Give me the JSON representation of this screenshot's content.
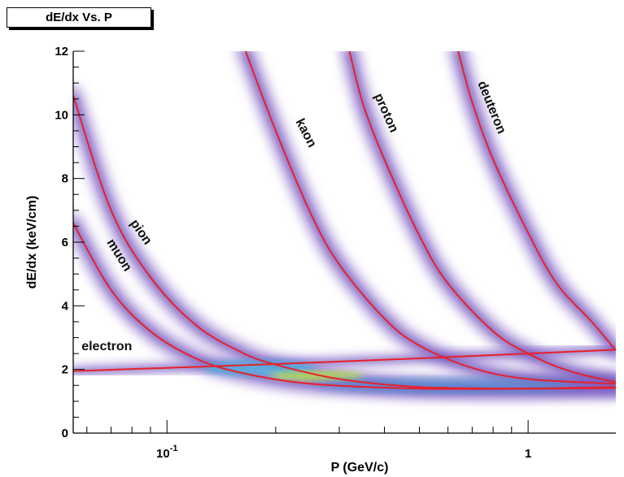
{
  "chart_data": {
    "type": "scatter",
    "title": "dE/dx Vs. P",
    "xlabel": "P (GeV/c)",
    "ylabel": "dE/dx (keV/cm)",
    "x_scale": "log",
    "xlim": [
      0.055,
      1.75
    ],
    "ylim": [
      0,
      12
    ],
    "x_ticks": [
      {
        "value": 0.1,
        "label": "10",
        "exponent": "-1"
      },
      {
        "value": 1,
        "label": "1",
        "exponent": ""
      }
    ],
    "y_ticks": [
      {
        "value": 0,
        "label": "0"
      },
      {
        "value": 2,
        "label": "2"
      },
      {
        "value": 4,
        "label": "4"
      },
      {
        "value": 6,
        "label": "6"
      },
      {
        "value": 8,
        "label": "8"
      },
      {
        "value": 10,
        "label": "10"
      },
      {
        "value": 12,
        "label": "12"
      }
    ],
    "series": [
      {
        "name": "electron",
        "color": "#e8202a",
        "points": [
          [
            0.055,
            1.95
          ],
          [
            0.1,
            2.05
          ],
          [
            0.2,
            2.17
          ],
          [
            0.5,
            2.35
          ],
          [
            1.0,
            2.5
          ],
          [
            1.75,
            2.62
          ]
        ]
      },
      {
        "name": "muon",
        "color": "#e8202a",
        "points": [
          [
            0.055,
            6.6
          ],
          [
            0.07,
            4.5
          ],
          [
            0.09,
            3.2
          ],
          [
            0.12,
            2.35
          ],
          [
            0.16,
            1.9
          ],
          [
            0.25,
            1.55
          ],
          [
            0.5,
            1.4
          ],
          [
            1.0,
            1.4
          ],
          [
            1.75,
            1.45
          ]
        ]
      },
      {
        "name": "pion",
        "color": "#e8202a",
        "points": [
          [
            0.055,
            10.6
          ],
          [
            0.07,
            7.0
          ],
          [
            0.09,
            4.9
          ],
          [
            0.12,
            3.4
          ],
          [
            0.16,
            2.55
          ],
          [
            0.2,
            2.15
          ],
          [
            0.3,
            1.7
          ],
          [
            0.5,
            1.45
          ],
          [
            1.0,
            1.4
          ],
          [
            1.75,
            1.42
          ]
        ]
      },
      {
        "name": "kaon",
        "color": "#e8202a",
        "points": [
          [
            0.165,
            12.0
          ],
          [
            0.2,
            9.5
          ],
          [
            0.25,
            6.9
          ],
          [
            0.3,
            5.3
          ],
          [
            0.4,
            3.6
          ],
          [
            0.5,
            2.75
          ],
          [
            0.7,
            2.05
          ],
          [
            1.0,
            1.7
          ],
          [
            1.75,
            1.55
          ]
        ]
      },
      {
        "name": "proton",
        "color": "#e8202a",
        "points": [
          [
            0.32,
            12.0
          ],
          [
            0.35,
            10.3
          ],
          [
            0.4,
            8.6
          ],
          [
            0.5,
            6.2
          ],
          [
            0.6,
            4.7
          ],
          [
            0.8,
            3.2
          ],
          [
            1.0,
            2.5
          ],
          [
            1.3,
            1.95
          ],
          [
            1.75,
            1.6
          ]
        ]
      },
      {
        "name": "deuteron",
        "color": "#e8202a",
        "points": [
          [
            0.64,
            12.0
          ],
          [
            0.7,
            10.4
          ],
          [
            0.8,
            8.6
          ],
          [
            1.0,
            6.3
          ],
          [
            1.2,
            4.7
          ],
          [
            1.5,
            3.5
          ],
          [
            1.75,
            2.6
          ]
        ]
      }
    ],
    "curve_labels": [
      {
        "text": "electron",
        "x": 0.058,
        "y": 2.6,
        "angle": 0
      },
      {
        "text": "muon",
        "x": 0.068,
        "y": 6.0,
        "angle": 58
      },
      {
        "text": "pion",
        "x": 0.079,
        "y": 6.6,
        "angle": 55
      },
      {
        "text": "kaon",
        "x": 0.227,
        "y": 9.8,
        "angle": 63
      },
      {
        "text": "proton",
        "x": 0.375,
        "y": 10.6,
        "angle": 66
      },
      {
        "text": "deuteron",
        "x": 0.725,
        "y": 11.0,
        "angle": 68
      }
    ],
    "density_bands": "purple scatter density, yellow-green peak near minimum ionization (~1.4 keV/cm)",
    "grid": false,
    "legend": "none"
  }
}
